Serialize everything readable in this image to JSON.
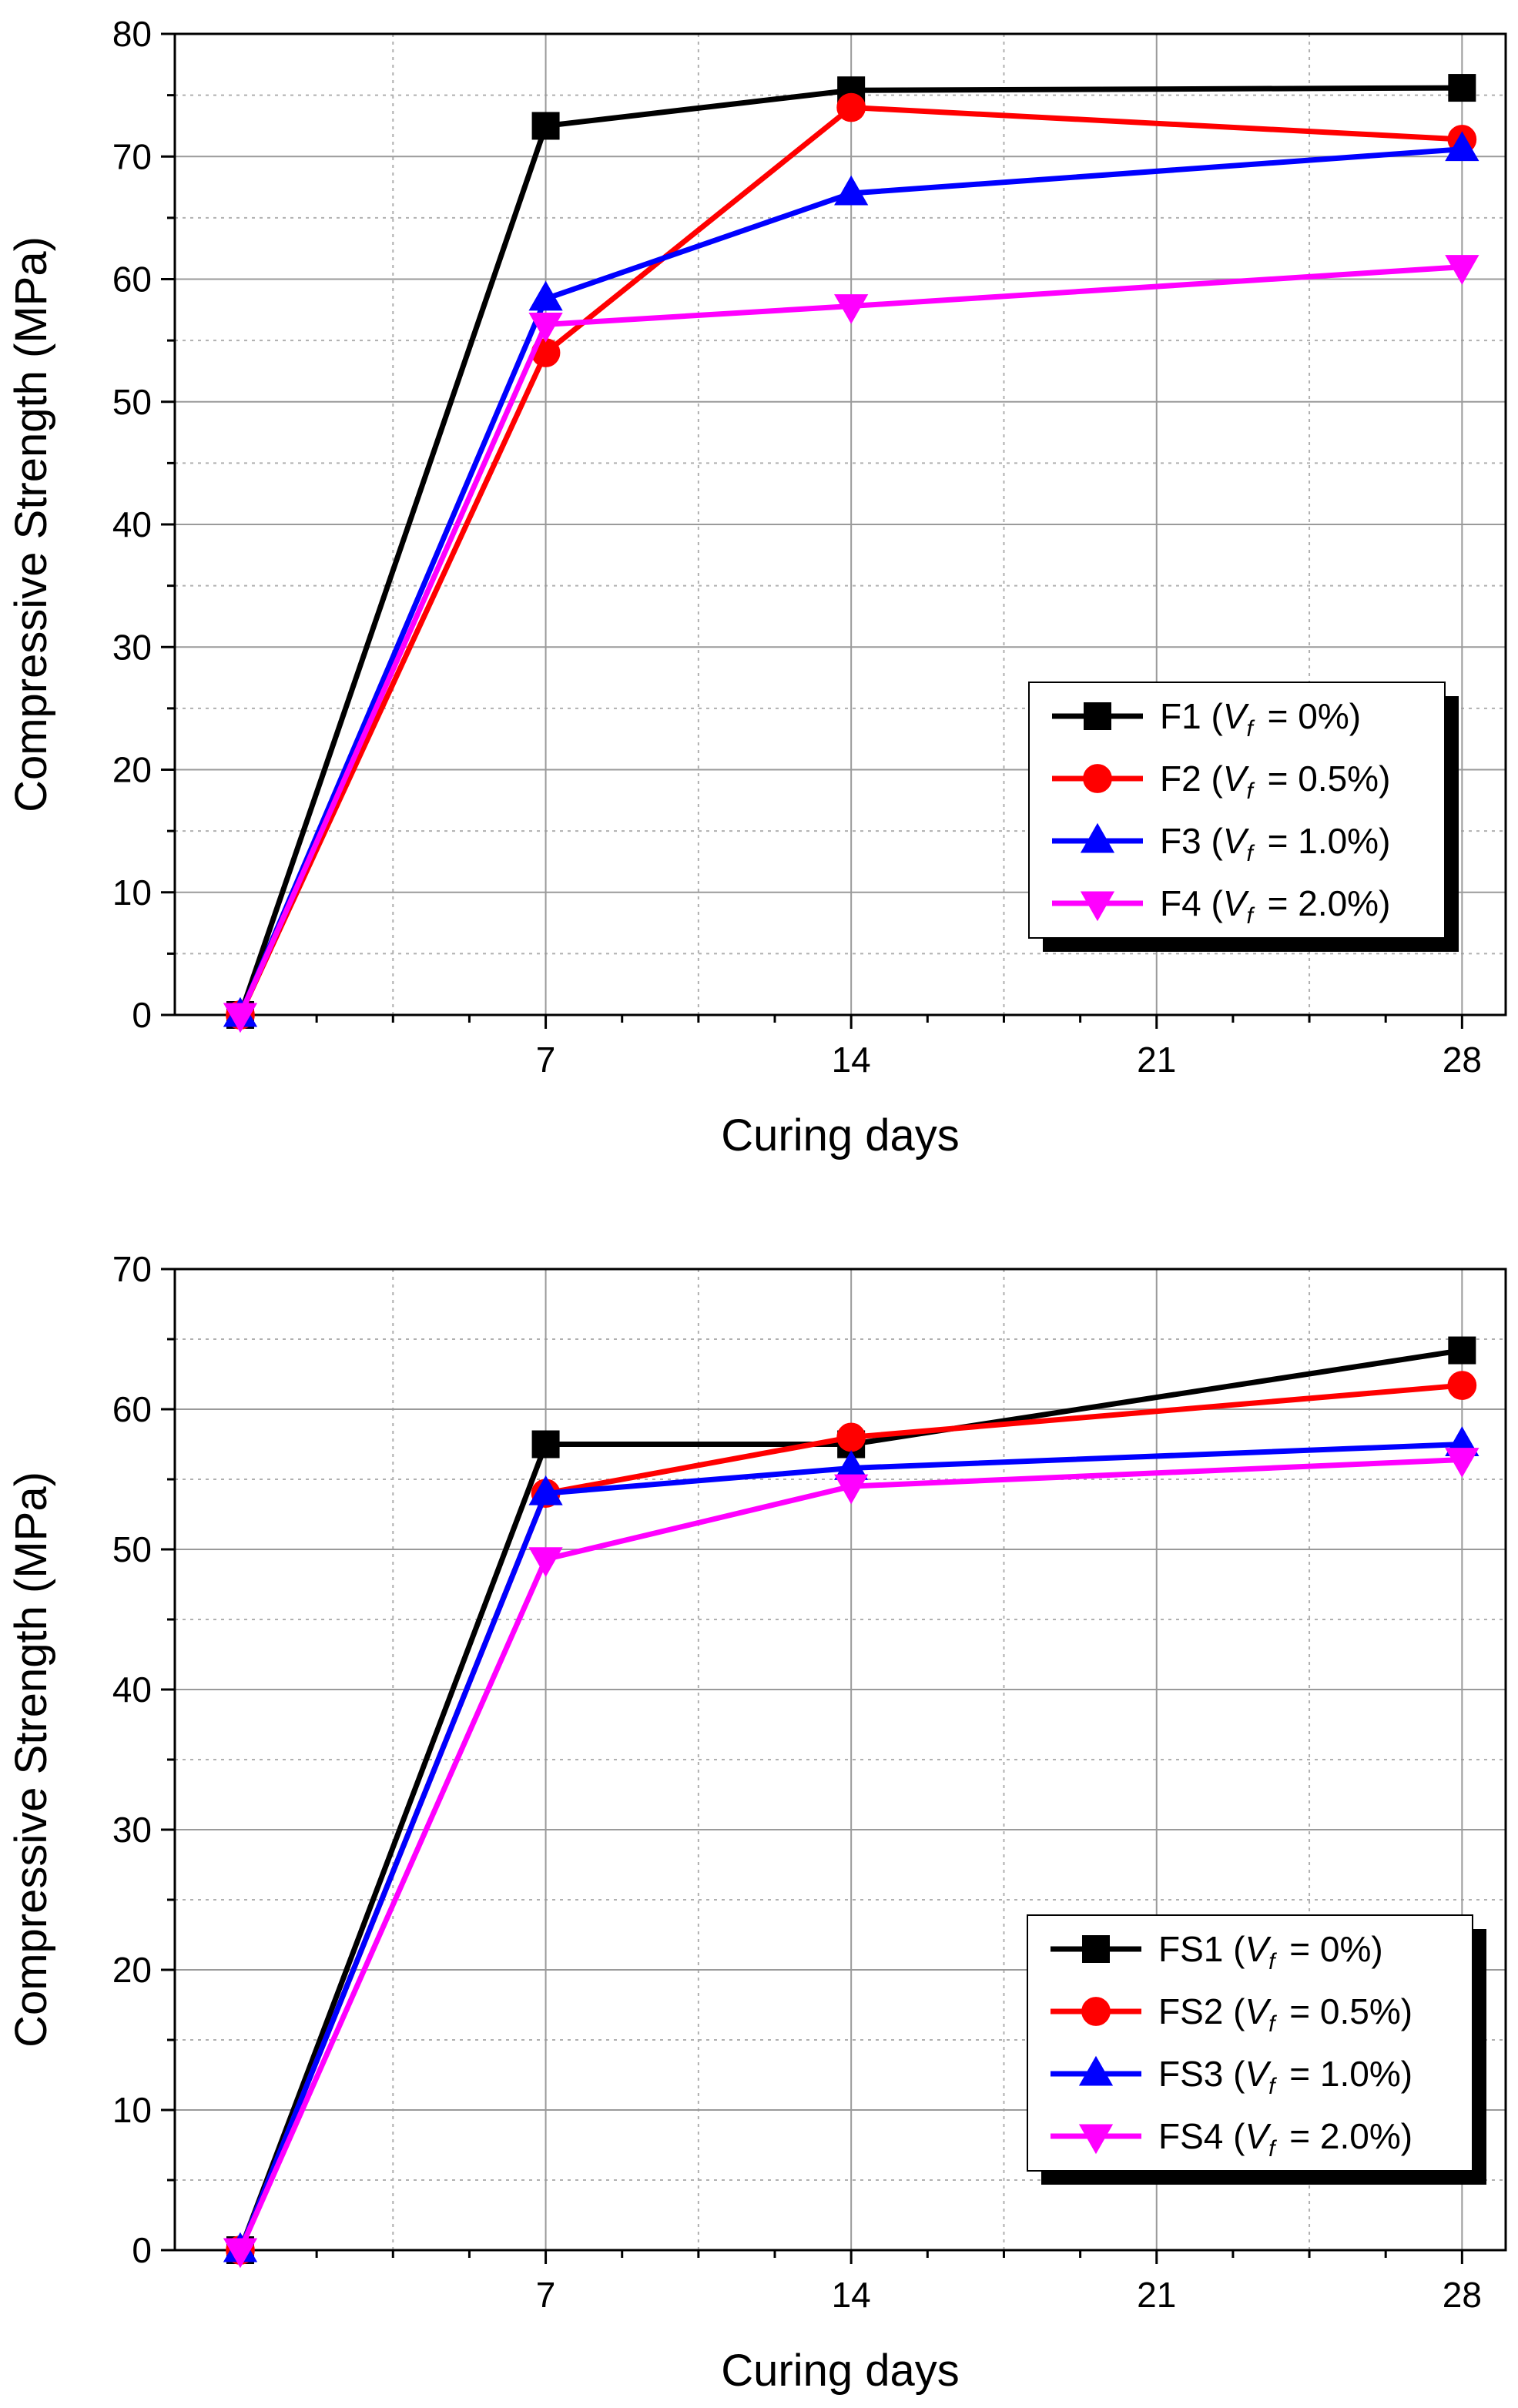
{
  "chart_data": [
    {
      "type": "line",
      "title": "",
      "xlabel": "Curing days",
      "ylabel": "Compressive Strength (MPa)",
      "xlim": [
        -1.5,
        29
      ],
      "ylim": [
        0,
        80
      ],
      "x_ticks": [
        7,
        14,
        21,
        28
      ],
      "y_ticks": [
        0,
        10,
        20,
        30,
        40,
        50,
        60,
        70,
        80
      ],
      "grid": true,
      "legend_position": "bottom-right",
      "x": [
        0,
        7,
        14,
        28
      ],
      "series": [
        {
          "name": "F1",
          "label_suffix": "= 0%",
          "color": "#000000",
          "marker": "square",
          "values": [
            0,
            72.5,
            75.4,
            75.6
          ]
        },
        {
          "name": "F2",
          "label_suffix": "= 0.5%",
          "color": "#ff0000",
          "marker": "circle",
          "values": [
            0,
            54.0,
            74.0,
            71.4
          ]
        },
        {
          "name": "F3",
          "label_suffix": "= 1.0%",
          "color": "#0000ff",
          "marker": "triangle-up",
          "values": [
            0,
            58.4,
            67.0,
            70.6
          ]
        },
        {
          "name": "F4",
          "label_suffix": "= 2.0%",
          "color": "#ff00ff",
          "marker": "triangle-down",
          "values": [
            0,
            56.3,
            57.8,
            61.0
          ]
        }
      ]
    },
    {
      "type": "line",
      "title": "",
      "xlabel": "Curing days",
      "ylabel": "Compressive Strength (MPa)",
      "xlim": [
        -1.5,
        29
      ],
      "ylim": [
        0,
        70
      ],
      "x_ticks": [
        7,
        14,
        21,
        28
      ],
      "y_ticks": [
        0,
        10,
        20,
        30,
        40,
        50,
        60,
        70
      ],
      "grid": true,
      "legend_position": "bottom-right",
      "x": [
        0,
        7,
        14,
        28
      ],
      "series": [
        {
          "name": "FS1",
          "label_suffix": "= 0%",
          "color": "#000000",
          "marker": "square",
          "values": [
            0,
            57.5,
            57.5,
            64.2
          ]
        },
        {
          "name": "FS2",
          "label_suffix": "= 0.5%",
          "color": "#ff0000",
          "marker": "circle",
          "values": [
            0,
            54.0,
            58.0,
            61.7
          ]
        },
        {
          "name": "FS3",
          "label_suffix": "= 1.0%",
          "color": "#0000ff",
          "marker": "triangle-up",
          "values": [
            0,
            54.0,
            55.8,
            57.5
          ]
        },
        {
          "name": "FS4",
          "label_suffix": "= 2.0%",
          "color": "#ff00ff",
          "marker": "triangle-down",
          "values": [
            0,
            49.3,
            54.5,
            56.4
          ]
        }
      ]
    }
  ],
  "legend_variable": {
    "main": "V",
    "subscript": "f"
  }
}
